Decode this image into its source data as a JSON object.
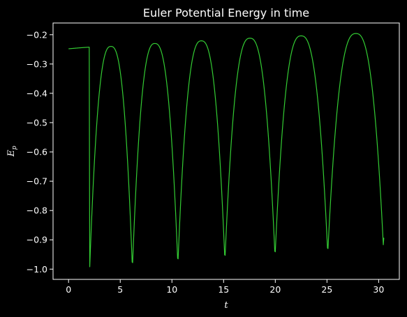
{
  "chart_data": {
    "type": "line",
    "title": "Euler Potential Energy in time",
    "xlabel": "t",
    "ylabel_base": "E",
    "ylabel_sub": "p",
    "xlim": [
      -1.5,
      32.0
    ],
    "ylim": [
      -1.035,
      -0.16
    ],
    "x_ticks": [
      0,
      5,
      10,
      15,
      20,
      25,
      30
    ],
    "y_ticks": [
      -1.0,
      -0.9,
      -0.8,
      -0.7,
      -0.6,
      -0.5,
      -0.4,
      -0.3,
      -0.2
    ],
    "x_tick_labels": [
      "0",
      "5",
      "10",
      "15",
      "20",
      "25",
      "30"
    ],
    "y_tick_labels": [
      "−1.0",
      "−0.9",
      "−0.8",
      "−0.7",
      "−0.6",
      "−0.5",
      "−0.4",
      "−0.3",
      "−0.2"
    ],
    "grid": false,
    "colors": {
      "background": "#000000",
      "axes": "#ffffff",
      "line": "#33cc33"
    },
    "series": [
      {
        "x": [
          0,
          2.0,
          2.05,
          6.15,
          6.2,
          10.55,
          10.6,
          15.1,
          15.15,
          19.95,
          20.0,
          25.05,
          25.1,
          30.45,
          30.5
        ],
        "y": [
          -0.248,
          -0.99,
          -0.992,
          -0.976,
          -0.978,
          -0.963,
          -0.965,
          -0.951,
          -0.953,
          -0.939,
          -0.941,
          -0.928,
          -0.93,
          -0.917,
          -0.893
        ],
        "peaks": [
          {
            "t": 4.1,
            "y": -0.24
          },
          {
            "t": 8.35,
            "y": -0.23
          },
          {
            "t": 12.85,
            "y": -0.221
          },
          {
            "t": 17.55,
            "y": -0.212
          },
          {
            "t": 22.5,
            "y": -0.204
          },
          {
            "t": 27.8,
            "y": -0.196
          }
        ]
      }
    ]
  }
}
